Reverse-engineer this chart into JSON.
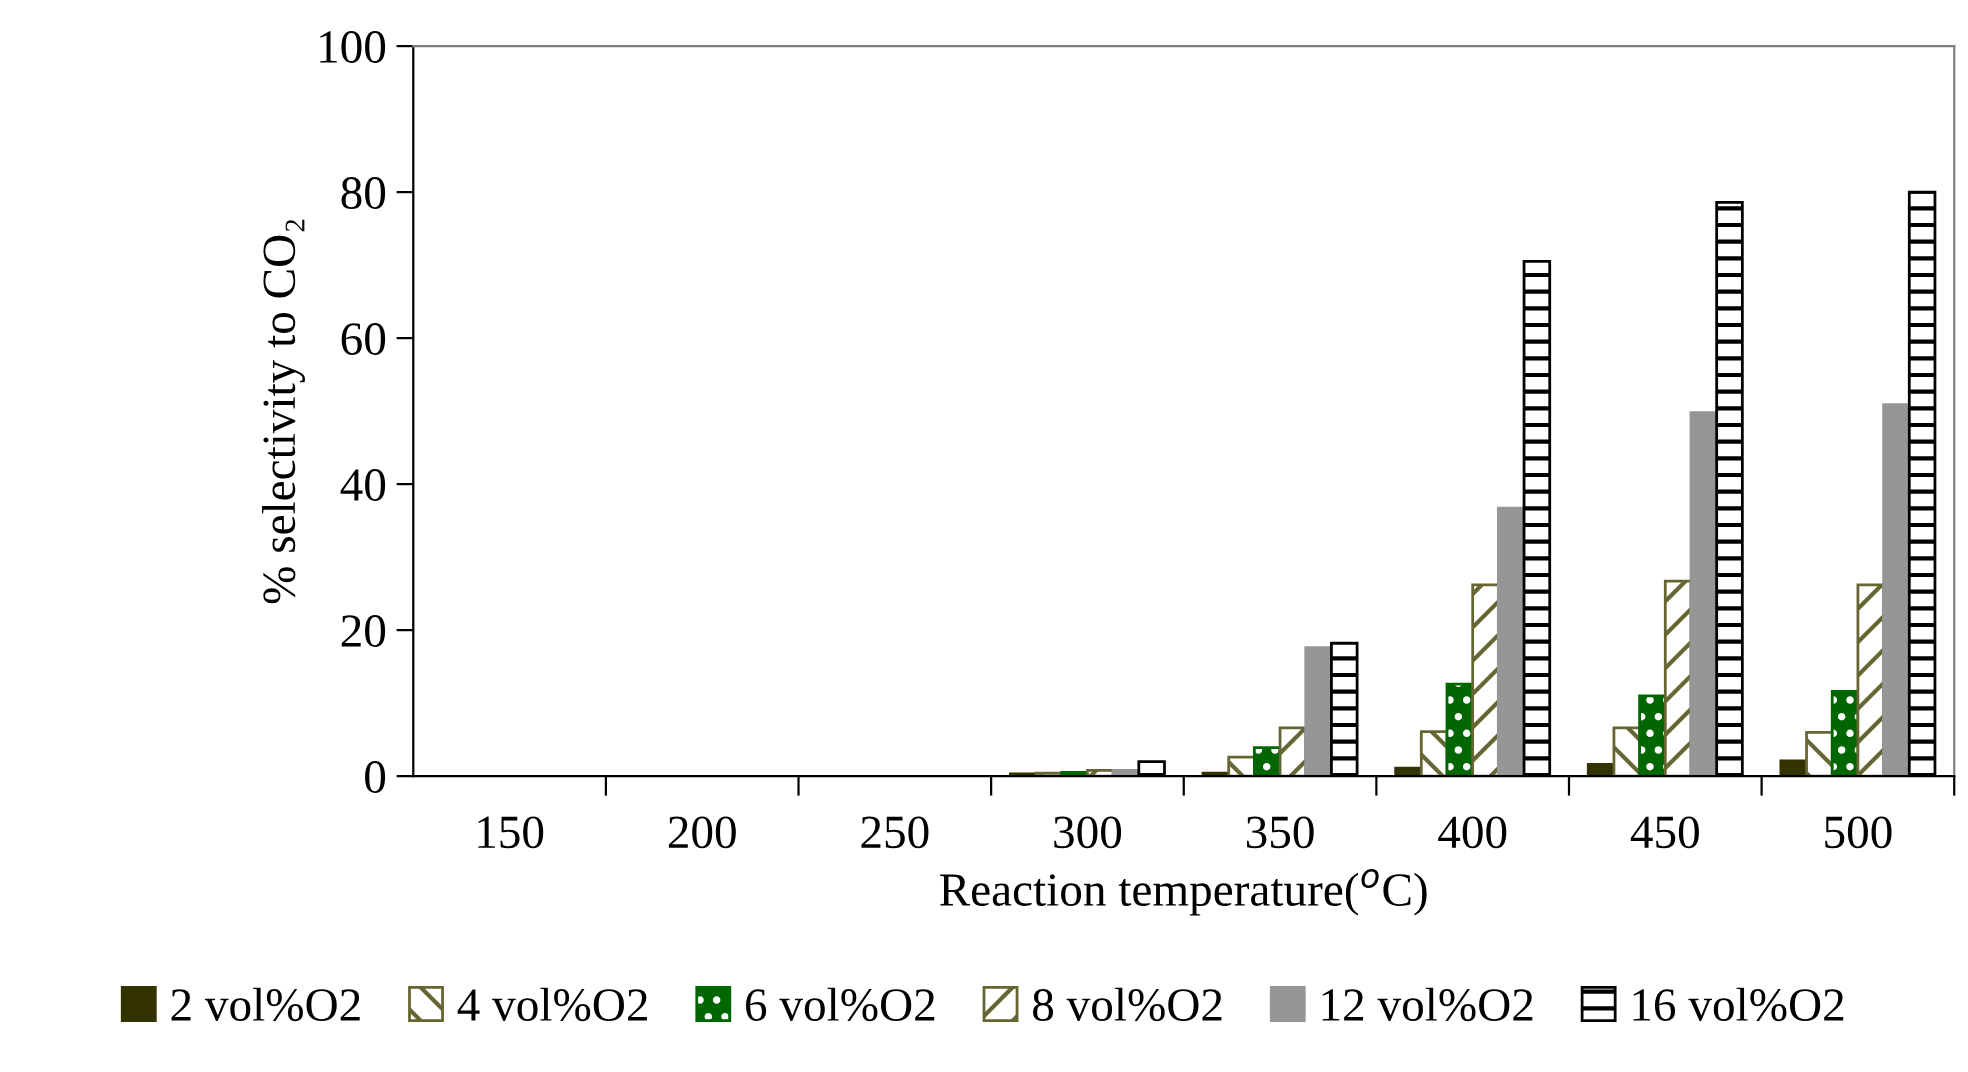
{
  "chart_data": {
    "type": "bar",
    "xlabel": "Reaction temperature($^{o}$C)",
    "ylabel": "% selectivity to CO₂",
    "categories": [
      "150",
      "200",
      "250",
      "300",
      "350",
      "400",
      "450",
      "500"
    ],
    "series": [
      {
        "name": "2 vol%O2",
        "color": "#333300",
        "values": [
          null,
          null,
          null,
          0.3,
          0.4,
          1.1,
          1.6,
          2.1
        ]
      },
      {
        "name": "4 vol%O2",
        "color": "#666633",
        "values": [
          null,
          null,
          null,
          0.4,
          2.6,
          6.1,
          6.6,
          6.0
        ]
      },
      {
        "name": "6 vol%O2",
        "color": "#006600",
        "values": [
          null,
          null,
          null,
          0.5,
          3.9,
          12.6,
          11.0,
          11.6
        ]
      },
      {
        "name": "8 vol%O2",
        "color": "#666633",
        "values": [
          null,
          null,
          null,
          0.8,
          6.6,
          26.2,
          26.7,
          26.2
        ]
      },
      {
        "name": "12 vol%O2",
        "color": "#969696",
        "values": [
          null,
          null,
          null,
          0.8,
          17.6,
          36.7,
          49.8,
          50.9
        ]
      },
      {
        "name": "16 vol%O2",
        "color": "#000000",
        "values": [
          null,
          null,
          null,
          2.0,
          18.2,
          70.5,
          78.6,
          80.0
        ]
      }
    ],
    "ylim": [
      0,
      100
    ],
    "yticks": [
      0,
      20,
      40,
      60,
      80,
      100
    ],
    "grid": false,
    "legend": "bottom"
  }
}
